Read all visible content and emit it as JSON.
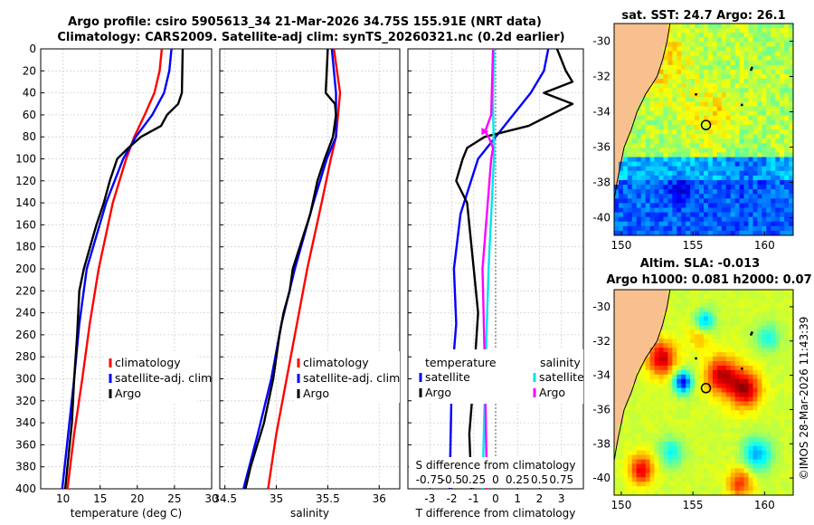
{
  "titles": {
    "line1": "Argo profile: csiro 5905613_34 21-Mar-2026 34.75S 155.91E (NRT data)",
    "line2": "Climatology: CARS2009. Satellite-adj clim: synTS_20260321.nc (0.2d earlier)"
  },
  "sst_panel": {
    "title": "sat. SST: 24.7 Argo: 26.1"
  },
  "sla_panel": {
    "title1": "Altim. SLA: -0.013",
    "title2": "Argo h1000: 0.081 h2000: 0.07"
  },
  "credit": "©IMOS 28-Mar-2026 11:43:39",
  "colors": {
    "climatology": "#ff0000",
    "satellite": "#0000ff",
    "argo": "#000000",
    "argo_diff": "#ff00ff",
    "sat_diff": "#00e5ee"
  },
  "chart_data": [
    {
      "type": "line",
      "name": "temperature",
      "xlabel": "temperature (deg C)",
      "ylabel": "",
      "xlim": [
        7,
        30
      ],
      "ylim": [
        400,
        0
      ],
      "xticks": [
        "10",
        "15",
        "20",
        "25",
        "30"
      ],
      "yticks": [
        "0",
        "20",
        "40",
        "60",
        "80",
        "100",
        "120",
        "140",
        "160",
        "180",
        "200",
        "220",
        "240",
        "260",
        "280",
        "300",
        "320",
        "340",
        "360",
        "380",
        "400"
      ],
      "legend": [
        "climatology",
        "satellite-adj. clim",
        "Argo"
      ],
      "series": [
        {
          "name": "climatology",
          "depth": [
            0,
            20,
            40,
            60,
            80,
            100,
            140,
            200,
            250,
            300,
            350,
            400
          ],
          "values": [
            23.3,
            23.0,
            22.3,
            21.0,
            19.6,
            18.5,
            16.7,
            14.8,
            13.6,
            12.6,
            11.5,
            10.6
          ]
        },
        {
          "name": "satellite-adj. clim",
          "depth": [
            0,
            20,
            40,
            60,
            80,
            100,
            140,
            200,
            250,
            300,
            350,
            400
          ],
          "values": [
            24.6,
            24.3,
            23.6,
            22.0,
            19.8,
            18.1,
            15.8,
            13.2,
            12.2,
            11.5,
            10.7,
            9.9
          ]
        },
        {
          "name": "Argo",
          "depth": [
            0,
            40,
            50,
            60,
            70,
            80,
            90,
            100,
            120,
            140,
            160,
            200,
            220,
            260,
            300,
            340,
            360,
            400
          ],
          "values": [
            26.1,
            26.0,
            25.5,
            24.0,
            23.2,
            20.5,
            18.8,
            17.3,
            16.3,
            15.5,
            14.5,
            12.8,
            12.2,
            11.9,
            11.5,
            11.2,
            10.9,
            10.3
          ]
        }
      ]
    },
    {
      "type": "line",
      "name": "salinity",
      "xlabel": "salinity",
      "xlim": [
        34.45,
        36.2
      ],
      "ylim": [
        400,
        0
      ],
      "xticks": [
        "34.5",
        "35",
        "35.5",
        "36"
      ],
      "legend": [
        "climatology",
        "satellite-adj. clim",
        "Argo"
      ],
      "series": [
        {
          "name": "climatology",
          "depth": [
            0,
            40,
            80,
            100,
            140,
            200,
            250,
            300,
            350,
            400
          ],
          "values": [
            35.56,
            35.62,
            35.58,
            35.53,
            35.44,
            35.3,
            35.2,
            35.1,
            35.0,
            34.92
          ]
        },
        {
          "name": "satellite-adj. clim",
          "depth": [
            0,
            40,
            80,
            100,
            140,
            200,
            250,
            300,
            350,
            400
          ],
          "values": [
            35.54,
            35.58,
            35.58,
            35.49,
            35.36,
            35.18,
            35.05,
            34.95,
            34.82,
            34.68
          ]
        },
        {
          "name": "Argo",
          "depth": [
            0,
            20,
            40,
            50,
            60,
            80,
            100,
            120,
            150,
            200,
            220,
            240,
            260,
            300,
            340,
            380,
            400
          ],
          "values": [
            35.5,
            35.49,
            35.48,
            35.57,
            35.58,
            35.55,
            35.47,
            35.4,
            35.33,
            35.16,
            35.13,
            35.07,
            35.03,
            34.97,
            34.88,
            34.75,
            34.7
          ]
        }
      ]
    },
    {
      "type": "line",
      "name": "differences",
      "xlabel": "T difference from climatology",
      "xlabel2": "S difference from climatology",
      "xlim": [
        -4,
        4
      ],
      "ylim": [
        400,
        0
      ],
      "xticks": [
        "-3",
        "-2",
        "-1",
        "0",
        "1",
        "2",
        "3"
      ],
      "xticks2": [
        "-0.75",
        "-0.5",
        "0.25",
        "0",
        "0.25",
        "0.5",
        "0.75"
      ],
      "legend_headers": [
        "temperature",
        "salinity"
      ],
      "legend": [
        "satellite",
        "Argo",
        "satellite",
        "Argo"
      ],
      "series": [
        {
          "name": "T satellite",
          "depth": [
            0,
            20,
            40,
            60,
            80,
            100,
            150,
            200,
            250,
            300,
            400
          ],
          "values": [
            2.4,
            2.2,
            1.6,
            0.8,
            0.0,
            -0.8,
            -1.6,
            -1.9,
            -1.8,
            -2.0,
            -2.1
          ]
        },
        {
          "name": "T Argo",
          "depth": [
            0,
            20,
            30,
            40,
            50,
            60,
            70,
            80,
            90,
            100,
            120,
            140,
            160,
            200,
            240,
            300,
            350,
            400
          ],
          "values": [
            2.8,
            3.2,
            3.5,
            2.2,
            3.5,
            2.5,
            1.5,
            -0.5,
            -1.3,
            -1.5,
            -1.8,
            -1.3,
            -1.2,
            -1.0,
            -0.8,
            -1.0,
            -1.2,
            -1.1
          ]
        },
        {
          "name": "S satellite",
          "depth": [
            0,
            50,
            100,
            200,
            300,
            400
          ],
          "values": [
            -0.02,
            -0.03,
            -0.02,
            -0.08,
            -0.12,
            -0.15
          ]
        },
        {
          "name": "S Argo",
          "depth": [
            0,
            60,
            75,
            80,
            90,
            100,
            150,
            200,
            300,
            400
          ],
          "values": [
            -0.03,
            -0.05,
            -0.12,
            -0.08,
            -0.03,
            -0.05,
            -0.1,
            -0.15,
            -0.12,
            -0.1
          ]
        }
      ]
    },
    {
      "type": "heatmap",
      "name": "sst-map",
      "title": "sat. SST: 24.7 Argo: 26.1",
      "xticks": [
        "150",
        "155",
        "160"
      ],
      "yticks": [
        "-30",
        "-32",
        "-34",
        "-36",
        "-38",
        "-40"
      ],
      "xlim": [
        149.5,
        162.0
      ],
      "ylim": [
        -41.0,
        -29.0
      ],
      "argo_lon": 155.91,
      "argo_lat": -34.75
    },
    {
      "type": "heatmap",
      "name": "sla-map",
      "title": "Altim. SLA: -0.013",
      "xticks": [
        "150",
        "155",
        "160"
      ],
      "yticks": [
        "-30",
        "-32",
        "-34",
        "-36",
        "-38",
        "-40"
      ],
      "xlim": [
        149.5,
        162.0
      ],
      "ylim": [
        -41.0,
        -29.0
      ],
      "argo_lon": 155.91,
      "argo_lat": -34.75
    }
  ]
}
